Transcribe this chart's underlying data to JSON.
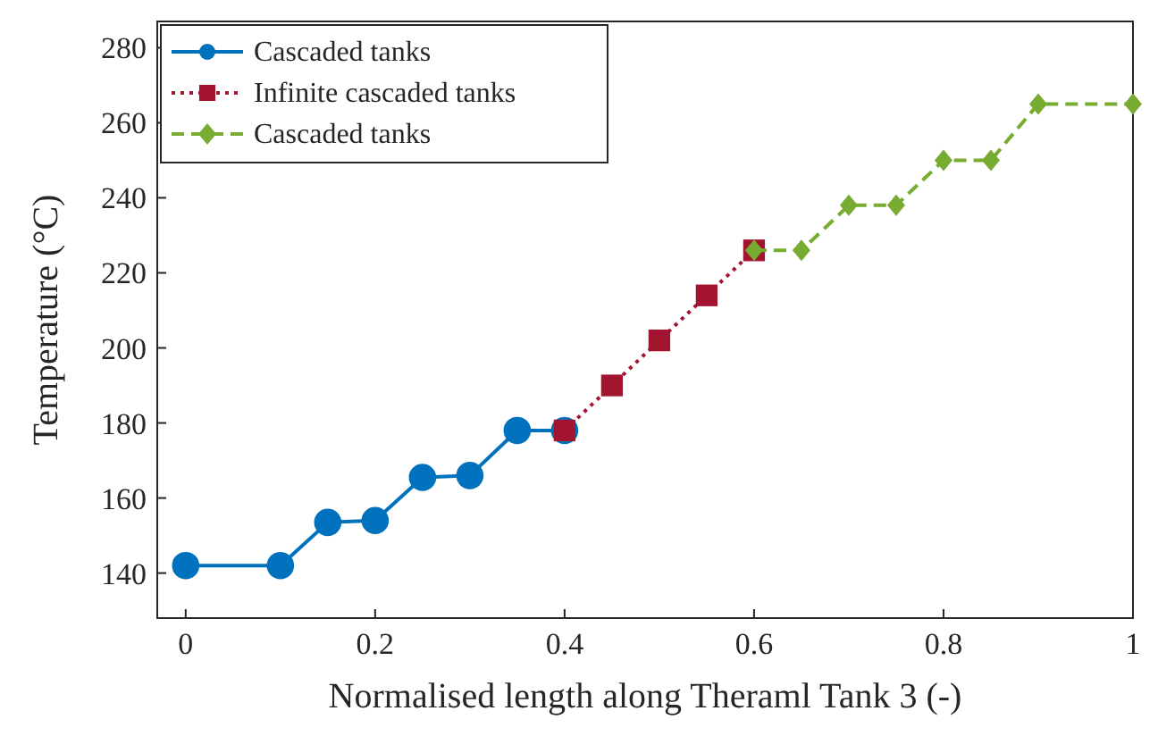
{
  "chart_data": {
    "type": "line",
    "xlabel": "Normalised length along Theraml Tank 3 (-)",
    "ylabel": "Temperature (°C)",
    "xlim": [
      -0.03,
      1.0
    ],
    "ylim": [
      128,
      287
    ],
    "xticks": [
      0,
      0.2,
      0.4,
      0.6,
      0.8,
      1
    ],
    "yticks": [
      140,
      160,
      180,
      200,
      220,
      240,
      260,
      280
    ],
    "grid": false,
    "legend": "top left",
    "series": [
      {
        "name": "Cascaded tanks",
        "color": "#0072bd",
        "marker": "circle",
        "line_style": "solid",
        "x": [
          0,
          0.1,
          0.15,
          0.2,
          0.25,
          0.3,
          0.35,
          0.4
        ],
        "values": [
          142,
          142,
          153.5,
          154,
          165.5,
          166,
          178,
          178
        ]
      },
      {
        "name": "Infinite cascaded tanks",
        "color": "#a2142f",
        "marker": "square",
        "line_style": "dotted",
        "x": [
          0.4,
          0.45,
          0.5,
          0.55,
          0.6
        ],
        "values": [
          178,
          190,
          202,
          214,
          226
        ]
      },
      {
        "name": "Cascaded tanks",
        "color": "#77ac30",
        "marker": "diamond",
        "line_style": "dashed",
        "x": [
          0.6,
          0.65,
          0.7,
          0.75,
          0.8,
          0.85,
          0.9,
          1
        ],
        "values": [
          226,
          226,
          238,
          238,
          250,
          250,
          265,
          265
        ]
      }
    ]
  }
}
